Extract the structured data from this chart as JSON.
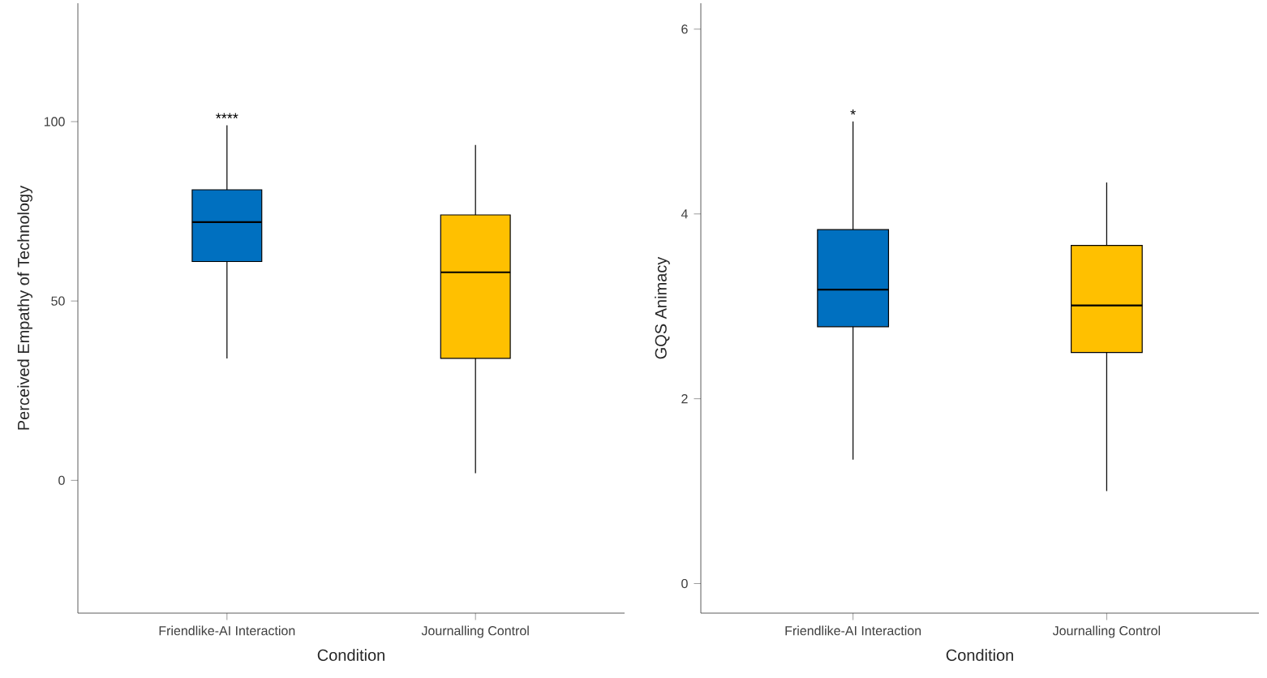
{
  "chart_data": [
    {
      "type": "box",
      "xlabel": "Condition",
      "ylabel": "Perceived Empathy of Technology",
      "categories": [
        "Friendlike-AI Interaction",
        "Journalling Control"
      ],
      "colors": [
        "#0070c0",
        "#ffc000"
      ],
      "boxes": [
        {
          "low": 34,
          "q1": 61,
          "median": 72,
          "q3": 81,
          "high": 99
        },
        {
          "low": 2,
          "q1": 34,
          "median": 58,
          "q3": 74,
          "high": 93.5
        }
      ],
      "ylim": [
        -37,
        133
      ],
      "yticks": [
        0,
        50,
        100
      ],
      "annotations": [
        "****"
      ]
    },
    {
      "type": "box",
      "xlabel": "Condition",
      "ylabel": "GQS Animacy",
      "categories": [
        "Friendlike-AI Interaction",
        "Journalling Control"
      ],
      "colors": [
        "#0070c0",
        "#ffc000"
      ],
      "boxes": [
        {
          "low": 1.34,
          "q1": 2.78,
          "median": 3.18,
          "q3": 3.83,
          "high": 5.0
        },
        {
          "low": 1.0,
          "q1": 2.5,
          "median": 3.01,
          "q3": 3.66,
          "high": 4.34
        }
      ],
      "ylim": [
        -0.32,
        6.28
      ],
      "yticks": [
        0,
        2,
        4,
        6
      ],
      "annotations": [
        "*"
      ]
    }
  ]
}
